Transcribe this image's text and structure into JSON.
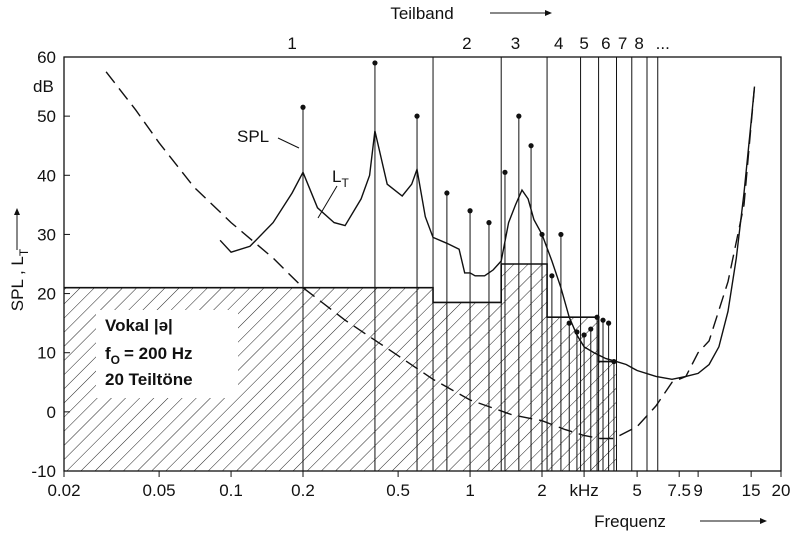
{
  "chart_data": {
    "type": "line",
    "top_axis_title": "Teilband",
    "xlabel": "Frequenz",
    "ylabel_main": "SPL , L",
    "ylabel_sub": "T",
    "y_unit": "dB",
    "x_scale": "log",
    "xlim": [
      0.02,
      20
    ],
    "ylim": [
      -10,
      60
    ],
    "grid": false,
    "x_ticks": [
      {
        "v": 0.02,
        "label": "0.02"
      },
      {
        "v": 0.05,
        "label": "0.05"
      },
      {
        "v": 0.1,
        "label": "0.1"
      },
      {
        "v": 0.2,
        "label": "0.2"
      },
      {
        "v": 0.5,
        "label": "0.5"
      },
      {
        "v": 1,
        "label": "1"
      },
      {
        "v": 2,
        "label": "2"
      },
      {
        "v": 3,
        "label": "kHz"
      },
      {
        "v": 5,
        "label": "5"
      },
      {
        "v": 7.5,
        "label": "7.5"
      },
      {
        "v": 9,
        "label": "9"
      },
      {
        "v": 15,
        "label": "15"
      },
      {
        "v": 20,
        "label": "20"
      }
    ],
    "y_ticks": [
      -10,
      0,
      10,
      20,
      30,
      40,
      50,
      60
    ],
    "band_labels": [
      {
        "f": 0.18,
        "label": "1"
      },
      {
        "f": 0.97,
        "label": "2"
      },
      {
        "f": 1.55,
        "label": "3"
      },
      {
        "f": 2.35,
        "label": "4"
      },
      {
        "f": 3.0,
        "label": "5"
      },
      {
        "f": 3.7,
        "label": "6"
      },
      {
        "f": 4.35,
        "label": "7"
      },
      {
        "f": 5.1,
        "label": "8"
      },
      {
        "f": 6.4,
        "label": "..."
      }
    ],
    "band_edges": [
      0.7,
      1.35,
      2.1,
      2.9,
      3.45,
      4.1,
      4.75,
      5.5,
      6.1
    ],
    "band_levels": [
      {
        "from": 0.02,
        "to": 0.7,
        "level": 21
      },
      {
        "from": 0.7,
        "to": 1.35,
        "level": 18.5
      },
      {
        "from": 1.35,
        "to": 2.1,
        "level": 25
      },
      {
        "from": 2.1,
        "to": 2.9,
        "level": 16
      },
      {
        "from": 2.9,
        "to": 3.45,
        "level": 16
      },
      {
        "from": 3.45,
        "to": 4.1,
        "level": 8.5
      }
    ],
    "partials": {
      "name": "SPL",
      "points": [
        [
          0.2,
          51.5
        ],
        [
          0.4,
          59
        ],
        [
          0.6,
          50
        ],
        [
          0.8,
          37
        ],
        [
          1.0,
          34
        ],
        [
          1.2,
          32
        ],
        [
          1.4,
          40.5
        ],
        [
          1.6,
          50
        ],
        [
          1.8,
          45
        ],
        [
          2.0,
          30
        ],
        [
          2.2,
          23
        ],
        [
          2.4,
          30
        ],
        [
          2.6,
          15
        ],
        [
          2.8,
          13.5
        ],
        [
          3.0,
          13
        ],
        [
          3.2,
          14
        ],
        [
          3.4,
          16
        ],
        [
          3.6,
          15.5
        ],
        [
          3.8,
          15
        ],
        [
          4.0,
          8.5
        ]
      ]
    },
    "loudness_curve": {
      "name": "L",
      "name_sub": "T",
      "points": [
        [
          0.09,
          29
        ],
        [
          0.1,
          27
        ],
        [
          0.12,
          28
        ],
        [
          0.15,
          32
        ],
        [
          0.18,
          37
        ],
        [
          0.2,
          40.5
        ],
        [
          0.23,
          34.5
        ],
        [
          0.27,
          32
        ],
        [
          0.3,
          31.5
        ],
        [
          0.35,
          36
        ],
        [
          0.38,
          40
        ],
        [
          0.4,
          47.5
        ],
        [
          0.45,
          38.5
        ],
        [
          0.52,
          36.5
        ],
        [
          0.57,
          38.5
        ],
        [
          0.6,
          41
        ],
        [
          0.65,
          33
        ],
        [
          0.7,
          29.5
        ],
        [
          0.8,
          28.5
        ],
        [
          0.9,
          27.5
        ],
        [
          0.95,
          23.5
        ],
        [
          1.0,
          23.5
        ],
        [
          1.05,
          23
        ],
        [
          1.15,
          23
        ],
        [
          1.25,
          24
        ],
        [
          1.35,
          25.5
        ],
        [
          1.45,
          32
        ],
        [
          1.55,
          35
        ],
        [
          1.65,
          37.5
        ],
        [
          1.75,
          36
        ],
        [
          1.85,
          32.5
        ],
        [
          2.0,
          30
        ],
        [
          2.2,
          25.5
        ],
        [
          2.4,
          21
        ],
        [
          2.6,
          16
        ],
        [
          2.8,
          13
        ],
        [
          3.0,
          11
        ],
        [
          3.3,
          10
        ],
        [
          3.7,
          9
        ],
        [
          4.1,
          8.5
        ],
        [
          4.5,
          8
        ],
        [
          5.0,
          7
        ],
        [
          6.0,
          6
        ],
        [
          7.0,
          5.5
        ],
        [
          8.0,
          6
        ],
        [
          9.0,
          6.5
        ],
        [
          10.0,
          8
        ],
        [
          11.0,
          11
        ],
        [
          12.0,
          17
        ],
        [
          13.0,
          26
        ],
        [
          14.0,
          37
        ],
        [
          15.0,
          49
        ],
        [
          15.5,
          55
        ]
      ]
    },
    "threshold_curve": {
      "style": "dashed",
      "points": [
        [
          0.03,
          57.5
        ],
        [
          0.04,
          51
        ],
        [
          0.05,
          45.5
        ],
        [
          0.07,
          38
        ],
        [
          0.1,
          32
        ],
        [
          0.15,
          26
        ],
        [
          0.2,
          21
        ],
        [
          0.3,
          15.5
        ],
        [
          0.5,
          9.5
        ],
        [
          0.7,
          5.5
        ],
        [
          1.0,
          2
        ],
        [
          1.5,
          -0.5
        ],
        [
          2.0,
          -1.5
        ],
        [
          2.5,
          -3
        ],
        [
          3.0,
          -4
        ],
        [
          3.5,
          -4.5
        ],
        [
          4.0,
          -4.5
        ],
        [
          5.0,
          -2.5
        ],
        [
          6.0,
          1
        ],
        [
          7.0,
          5
        ],
        [
          8.0,
          6
        ],
        [
          9.0,
          10
        ],
        [
          10.0,
          12
        ],
        [
          12.0,
          22
        ],
        [
          14.0,
          35
        ],
        [
          15.5,
          55
        ]
      ]
    },
    "annotation": {
      "lines": [
        "Vokal |ə|",
        "f",
        "= 200 Hz",
        "20 Teiltöne"
      ],
      "f_sub": "O"
    }
  },
  "colors": {
    "ink": "#111111",
    "background": "#ffffff",
    "hatch": "#222222"
  }
}
